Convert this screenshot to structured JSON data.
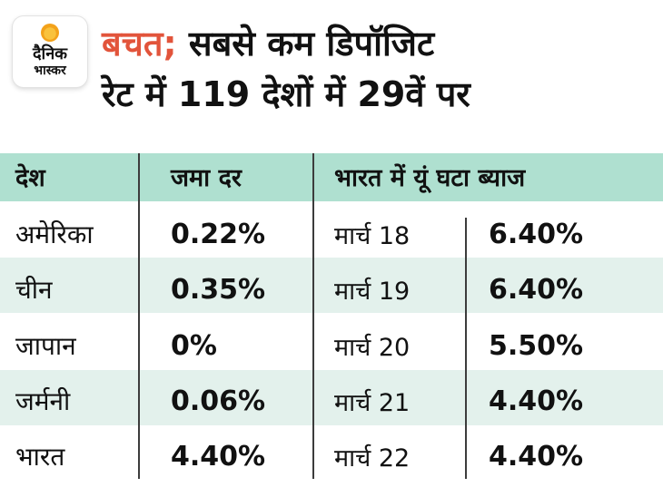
{
  "brand": {
    "line1": "दैनिक",
    "line2": "भास्कर"
  },
  "title": {
    "highlight": "बचत;",
    "line1_rest": " सबसे कम डिपॉजिट",
    "line2": "रेट में 119 देशों में 29वें पर"
  },
  "headers": {
    "country": "देश",
    "rate": "जमा दर",
    "india": "भारत में यूं घटा ब्याज"
  },
  "rows": [
    {
      "country": "अमेरिका",
      "rate": "0.22%",
      "month": "मार्च 18",
      "india_rate": "6.40%"
    },
    {
      "country": "चीन",
      "rate": "0.35%",
      "month": "मार्च 19",
      "india_rate": "6.40%"
    },
    {
      "country": "जापान",
      "rate": "0%",
      "month": "मार्च 20",
      "india_rate": "5.50%"
    },
    {
      "country": "जर्मनी",
      "rate": "0.06%",
      "month": "मार्च 21",
      "india_rate": "4.40%"
    },
    {
      "country": "भारत",
      "rate": "4.40%",
      "month": "मार्च 22",
      "india_rate": "4.40%"
    }
  ],
  "colors": {
    "accent": "#e2543b",
    "header_bg": "#afe0d0",
    "row_shade": "#e3f1ec"
  }
}
